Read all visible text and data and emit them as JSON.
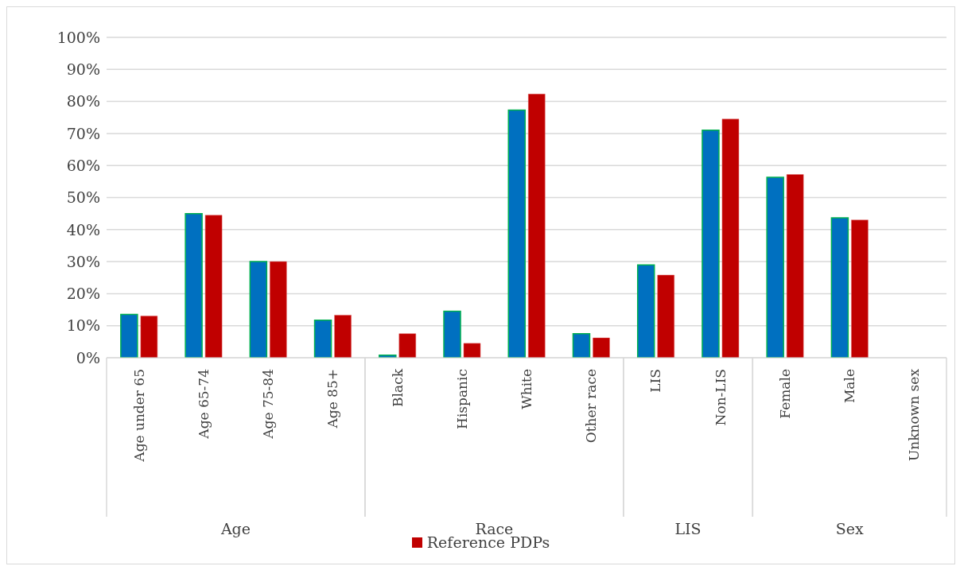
{
  "chart_data": {
    "type": "bar",
    "categories": [
      "Age under 65",
      "Age 65-74",
      "Age 75-84",
      "Age 85+",
      "Black",
      "Hispanic",
      "White",
      "Other race",
      "LIS",
      "Non-LIS",
      "Female",
      "Male",
      "Unknown sex"
    ],
    "series": [
      {
        "color": "#0070c0",
        "values": [
          13.5,
          45,
          30,
          11.7,
          0.8,
          14.5,
          77.3,
          7.5,
          29,
          71,
          56.3,
          43.7,
          0
        ]
      },
      {
        "name": "Reference PDPs",
        "color": "#c00000",
        "values": [
          13,
          44.5,
          30,
          13.3,
          7.5,
          4.5,
          82.3,
          6.2,
          25.8,
          74.5,
          57.2,
          43,
          0
        ]
      }
    ],
    "ylim": [
      0,
      100
    ],
    "yticks": [
      {
        "value": 0,
        "label": "0%"
      },
      {
        "value": 10,
        "label": "10%"
      },
      {
        "value": 20,
        "label": "20%"
      },
      {
        "value": 30,
        "label": "30%"
      },
      {
        "value": 40,
        "label": "40%"
      },
      {
        "value": 50,
        "label": "50%"
      },
      {
        "value": 60,
        "label": "60%"
      },
      {
        "value": 70,
        "label": "70%"
      },
      {
        "value": 80,
        "label": "80%"
      },
      {
        "value": 90,
        "label": "90%"
      },
      {
        "value": 100,
        "label": "100%"
      }
    ],
    "grid": "y",
    "legend": "bottom",
    "annotations": [
      "Age",
      "Race",
      "LIS",
      "Sex"
    ]
  }
}
